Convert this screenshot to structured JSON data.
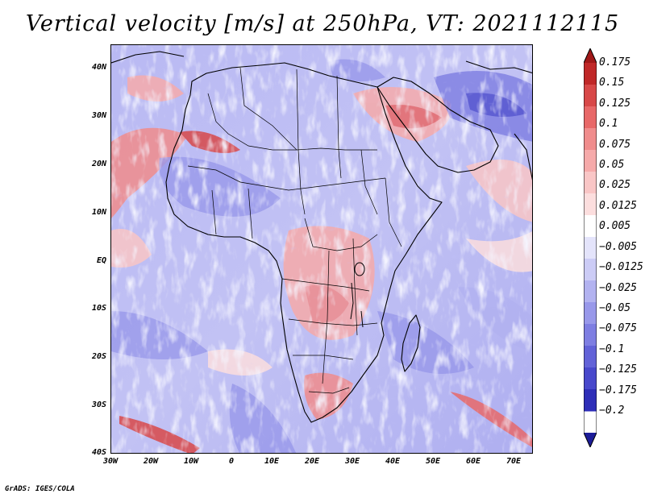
{
  "title": "Vertical velocity [m/s] at 250hPa, VT: 2021112115",
  "credit": "GrADS: IGES/COLA",
  "map": {
    "projection": "lat-lon",
    "lon_range": [
      -30,
      75
    ],
    "lat_range": [
      -40,
      45
    ],
    "lat_labels": [
      "40N",
      "30N",
      "20N",
      "10N",
      "EQ",
      "10S",
      "20S",
      "30S",
      "40S"
    ],
    "lon_labels": [
      "30W",
      "20W",
      "10W",
      "0",
      "10E",
      "20E",
      "30E",
      "40E",
      "50E",
      "60E",
      "70E"
    ]
  },
  "colorbar": {
    "labels": [
      "0.175",
      "0.15",
      "0.125",
      "0.1",
      "0.075",
      "0.05",
      "0.025",
      "0.0125",
      "0.005",
      "−0.005",
      "−0.0125",
      "−0.025",
      "−0.05",
      "−0.075",
      "−0.1",
      "−0.125",
      "−0.175",
      "−0.2"
    ],
    "colors": [
      "#a01818",
      "#c02828",
      "#d84848",
      "#e86868",
      "#f08c8c",
      "#f6aaaa",
      "#f9c6c6",
      "#fcdede",
      "#ffffff",
      "#e4e4fb",
      "#ccccf6",
      "#b2b2f0",
      "#9898ea",
      "#7e7ee2",
      "#6262d8",
      "#4848cc",
      "#2e2eb8",
      "#1c1c98"
    ]
  }
}
